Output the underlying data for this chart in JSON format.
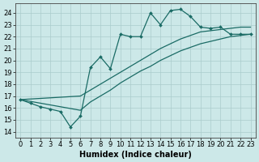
{
  "xlabel": "Humidex (Indice chaleur)",
  "xlim": [
    -0.5,
    23.5
  ],
  "ylim": [
    13.5,
    24.8
  ],
  "xticks": [
    0,
    1,
    2,
    3,
    4,
    5,
    6,
    7,
    8,
    9,
    10,
    11,
    12,
    13,
    14,
    15,
    16,
    17,
    18,
    19,
    20,
    21,
    22,
    23
  ],
  "yticks": [
    14,
    15,
    16,
    17,
    18,
    19,
    20,
    21,
    22,
    23,
    24
  ],
  "bg_color": "#cce8e8",
  "grid_color": "#aacccc",
  "line_color": "#1a6b65",
  "line_main": [
    16.7,
    16.4,
    16.1,
    15.9,
    15.7,
    14.4,
    15.3,
    19.4,
    20.3,
    19.3,
    22.2,
    22.0,
    22.0,
    24.0,
    23.0,
    24.2,
    24.3,
    23.7,
    22.8,
    22.7,
    22.8,
    22.2,
    22.2,
    22.2
  ],
  "line_lo": [
    16.7,
    16.55,
    16.4,
    16.25,
    16.1,
    15.95,
    15.8,
    16.5,
    17.0,
    17.5,
    18.1,
    18.6,
    19.1,
    19.5,
    20.0,
    20.4,
    20.8,
    21.1,
    21.4,
    21.6,
    21.8,
    22.0,
    22.1,
    22.2
  ],
  "line_hi": [
    16.7,
    16.75,
    16.8,
    16.85,
    16.9,
    16.95,
    17.0,
    17.5,
    18.0,
    18.5,
    19.0,
    19.5,
    20.0,
    20.5,
    21.0,
    21.4,
    21.8,
    22.1,
    22.4,
    22.5,
    22.6,
    22.7,
    22.8,
    22.8
  ],
  "tick_fontsize": 6,
  "label_fontsize": 7
}
